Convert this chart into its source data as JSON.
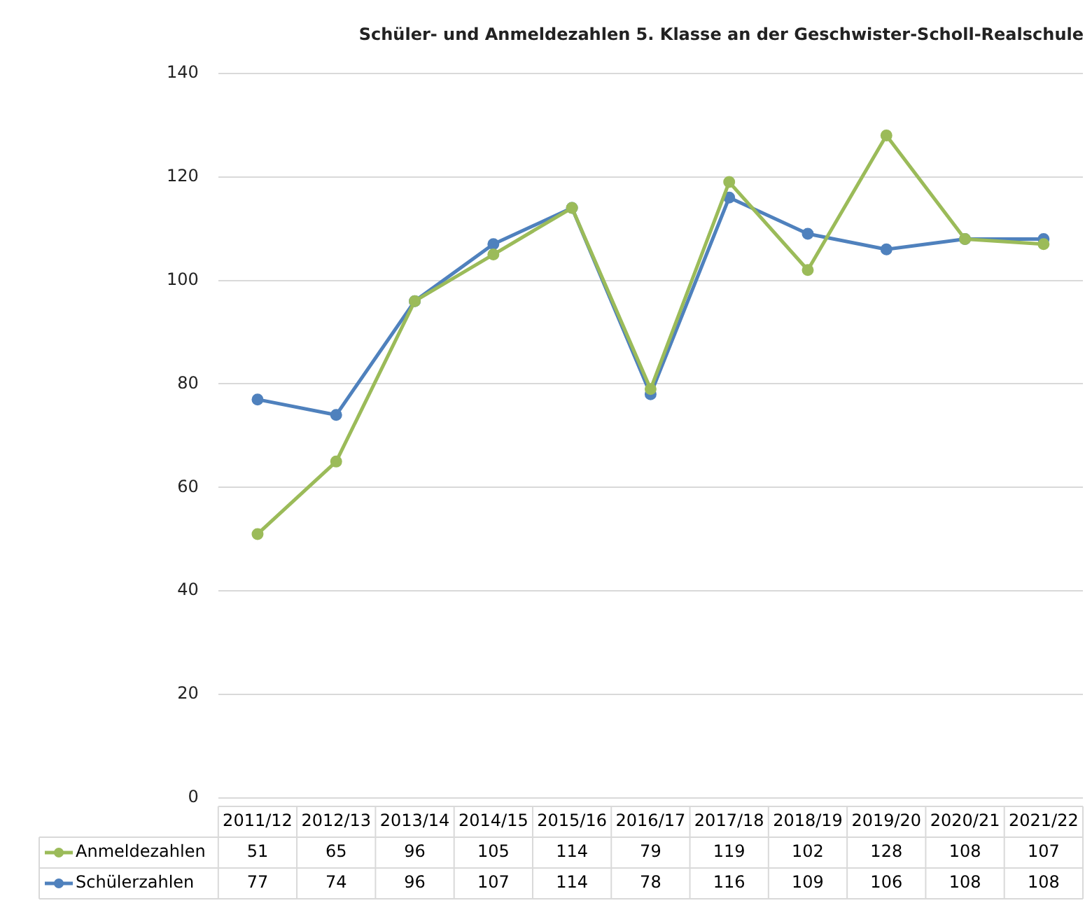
{
  "chart_data": {
    "type": "line",
    "title": "Schüler- und Anmeldezahlen 5. Klasse an der Geschwister-Scholl-Realschule",
    "categories": [
      "2011/12",
      "2012/13",
      "2013/14",
      "2014/15",
      "2015/16",
      "2016/17",
      "2017/18",
      "2018/19",
      "2019/20",
      "2020/21",
      "2021/22"
    ],
    "series": [
      {
        "name": "Anmeldezahlen",
        "color": "#9bbb59",
        "values": [
          51,
          65,
          96,
          105,
          114,
          79,
          119,
          102,
          128,
          108,
          107
        ]
      },
      {
        "name": "Schülerzahlen",
        "color": "#4f81bd",
        "values": [
          77,
          74,
          96,
          107,
          114,
          78,
          116,
          109,
          106,
          108,
          108
        ]
      }
    ],
    "ylim": [
      0,
      140
    ],
    "yticks": [
      0,
      20,
      40,
      60,
      80,
      100,
      120,
      140
    ],
    "grid": "y",
    "legend": "bottom",
    "marker": "circle",
    "line_style": "solid",
    "data_labels": true
  }
}
